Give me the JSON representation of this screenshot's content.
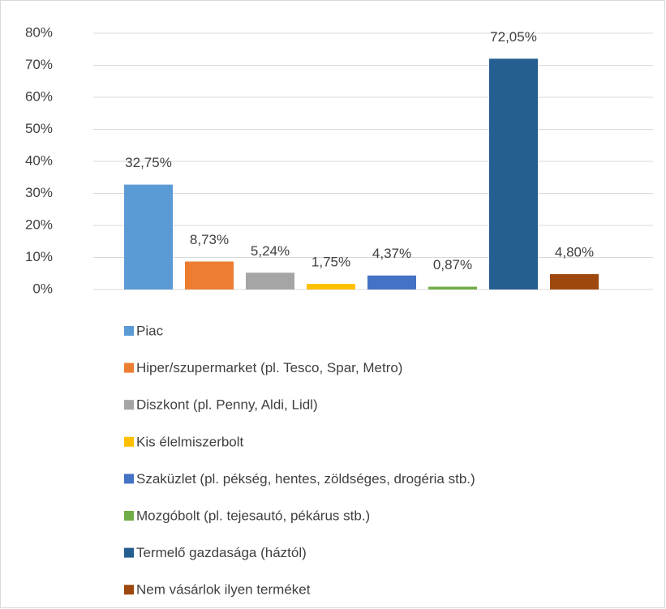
{
  "chart_data": {
    "type": "bar",
    "series": [
      {
        "name": "Piac",
        "color": "#5b9bd5",
        "values": [
          32.75
        ],
        "value_labels": [
          "32,75%"
        ]
      },
      {
        "name": "Hiper/szupermarket (pl. Tesco, Spar, Metro)",
        "color": "#ed7d31",
        "values": [
          8.73
        ],
        "value_labels": [
          "8,73%"
        ]
      },
      {
        "name": "Diszkont (pl. Penny, Aldi, Lidl)",
        "color": "#a5a5a5",
        "values": [
          5.24
        ],
        "value_labels": [
          "5,24%"
        ]
      },
      {
        "name": "Kis élelmiszerbolt",
        "color": "#ffc000",
        "values": [
          1.75
        ],
        "value_labels": [
          "1,75%"
        ]
      },
      {
        "name": "Szaküzlet (pl. pékség, hentes, zöldséges, drogéria stb.)",
        "color": "#4472c4",
        "values": [
          4.37
        ],
        "value_labels": [
          "4,37%"
        ]
      },
      {
        "name": "Mozgóbolt (pl. tejesautó, pékárus stb.)",
        "color": "#70ad47",
        "values": [
          0.87
        ],
        "value_labels": [
          "0,87%"
        ]
      },
      {
        "name": "Termelő gazdasága (háztól)",
        "color": "#255e91",
        "values": [
          72.05
        ],
        "value_labels": [
          "72,05%"
        ]
      },
      {
        "name": "Nem vásárlok ilyen terméket",
        "color": "#9e480e",
        "values": [
          4.8
        ],
        "value_labels": [
          "4,80%"
        ]
      }
    ],
    "ylim": [
      0,
      80
    ],
    "yticks": [
      {
        "value": 0,
        "label": "0%"
      },
      {
        "value": 10,
        "label": "10%"
      },
      {
        "value": 20,
        "label": "20%"
      },
      {
        "value": 30,
        "label": "30%"
      },
      {
        "value": 40,
        "label": "40%"
      },
      {
        "value": 50,
        "label": "50%"
      },
      {
        "value": 60,
        "label": "60%"
      },
      {
        "value": 70,
        "label": "70%"
      },
      {
        "value": 80,
        "label": "80%"
      }
    ],
    "grid": true,
    "legend": "bottom"
  }
}
